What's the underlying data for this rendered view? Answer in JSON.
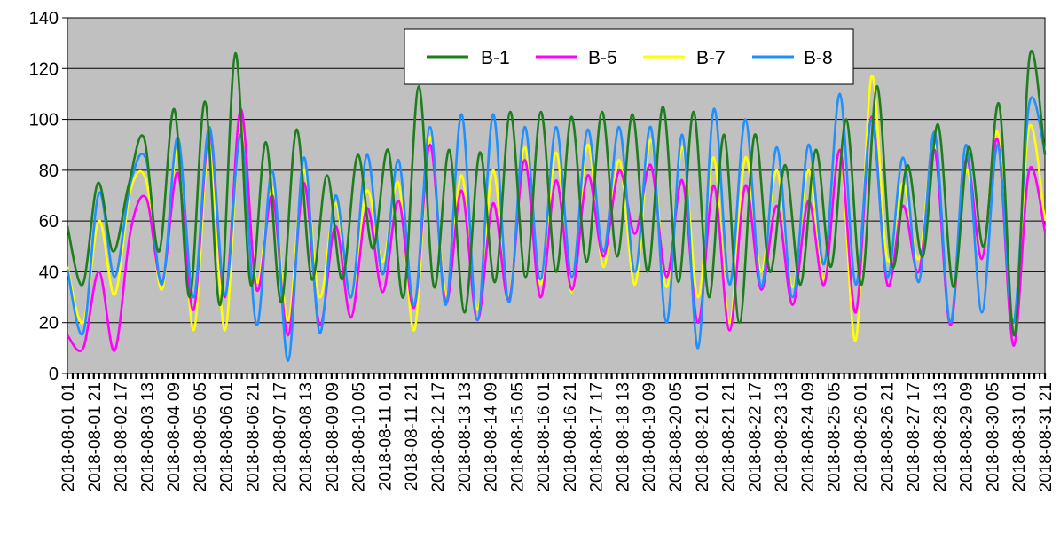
{
  "chart_data": {
    "type": "line",
    "title": "",
    "xlabel": "",
    "ylabel": "",
    "ylim": [
      0,
      140
    ],
    "y_ticks": [
      0,
      20,
      40,
      60,
      80,
      100,
      120,
      140
    ],
    "grid": "horizontal",
    "legend_position": "top-center",
    "plot_background": "#c0c0c0",
    "x_start": "2018-08-01 01",
    "x_step_hours": 1,
    "x_count": 741,
    "x_tick_labels": [
      "2018-08-01 01",
      "2018-08-01 21",
      "2018-08-02 17",
      "2018-08-03 13",
      "2018-08-04 09",
      "2018-08-05 05",
      "2018-08-06 01",
      "2018-08-06 21",
      "2018-08-07 17",
      "2018-08-08 13",
      "2018-08-09 09",
      "2018-08-10 05",
      "2018-08-11 01",
      "2018-08-11 21",
      "2018-08-12 17",
      "2018-08-13 13",
      "2018-08-14 09",
      "2018-08-15 05",
      "2018-08-16 01",
      "2018-08-16 21",
      "2018-08-17 17",
      "2018-08-18 13",
      "2018-08-19 09",
      "2018-08-20 05",
      "2018-08-21 01",
      "2018-08-21 21",
      "2018-08-22 17",
      "2018-08-23 13",
      "2018-08-24 09",
      "2018-08-25 05",
      "2018-08-26 01",
      "2018-08-26 21",
      "2018-08-27 17",
      "2018-08-28 13",
      "2018-08-29 09",
      "2018-08-30 05",
      "2018-08-31 01",
      "2018-08-31 21"
    ],
    "day_times": [
      0,
      16,
      40,
      64,
      88,
      112,
      136,
      160,
      184,
      208,
      232,
      256,
      280,
      304,
      328,
      352,
      376,
      400,
      424,
      448,
      472,
      496,
      520,
      544,
      568,
      592,
      616,
      640,
      664,
      688,
      712,
      724,
      732,
      740
    ],
    "series": [
      {
        "name": "B-1",
        "color": "#1e7e1e",
        "values": [
          58,
          35,
          75,
          48,
          74,
          93,
          48,
          104,
          30,
          107,
          27,
          126,
          35,
          91,
          28,
          96,
          37,
          78,
          37,
          86,
          49,
          88,
          30,
          113,
          34,
          88,
          24,
          87,
          36,
          103,
          38,
          103,
          40,
          101,
          44,
          103,
          46,
          102,
          40,
          105,
          36,
          103,
          30,
          94,
          20,
          94,
          40,
          82,
          35,
          88,
          42,
          100,
          35,
          113,
          42,
          82,
          46,
          98,
          34,
          89,
          50,
          106,
          15,
          125,
          86
        ]
      },
      {
        "name": "B-5",
        "color": "#ff00ff",
        "values": [
          15,
          10,
          40,
          9,
          56,
          69,
          36,
          79,
          25,
          95,
          30,
          104,
          33,
          70,
          15,
          75,
          19,
          58,
          22,
          65,
          32,
          68,
          26,
          90,
          28,
          72,
          21,
          67,
          29,
          84,
          30,
          76,
          33,
          78,
          46,
          80,
          55,
          82,
          38,
          76,
          20,
          74,
          17,
          74,
          33,
          66,
          27,
          68,
          35,
          88,
          24,
          101,
          35,
          66,
          40,
          88,
          19,
          84,
          45,
          92,
          11,
          80,
          56
        ]
      },
      {
        "name": "B-7",
        "color": "#ffff00",
        "values": [
          42,
          20,
          60,
          31,
          72,
          76,
          33,
          88,
          17,
          90,
          17,
          99,
          36,
          73,
          21,
          80,
          30,
          67,
          30,
          72,
          44,
          75,
          17,
          93,
          31,
          78,
          25,
          80,
          30,
          89,
          35,
          87,
          32,
          90,
          42,
          84,
          35,
          92,
          34,
          89,
          30,
          85,
          20,
          85,
          40,
          80,
          34,
          80,
          37,
          88,
          13,
          117,
          45,
          75,
          45,
          90,
          20,
          80,
          45,
          95,
          20,
          97,
          60
        ]
      },
      {
        "name": "B-8",
        "color": "#1e90ff",
        "values": [
          41,
          16,
          71,
          38,
          75,
          84,
          35,
          93,
          30,
          97,
          31,
          94,
          19,
          80,
          5,
          85,
          16,
          70,
          30,
          86,
          39,
          84,
          27,
          97,
          27,
          102,
          21,
          102,
          28,
          97,
          37,
          97,
          38,
          96,
          48,
          97,
          40,
          97,
          20,
          94,
          10,
          104,
          35,
          100,
          34,
          89,
          30,
          90,
          43,
          110,
          35,
          100,
          38,
          85,
          36,
          95,
          20,
          90,
          24,
          90,
          20,
          106,
          87
        ]
      }
    ]
  }
}
